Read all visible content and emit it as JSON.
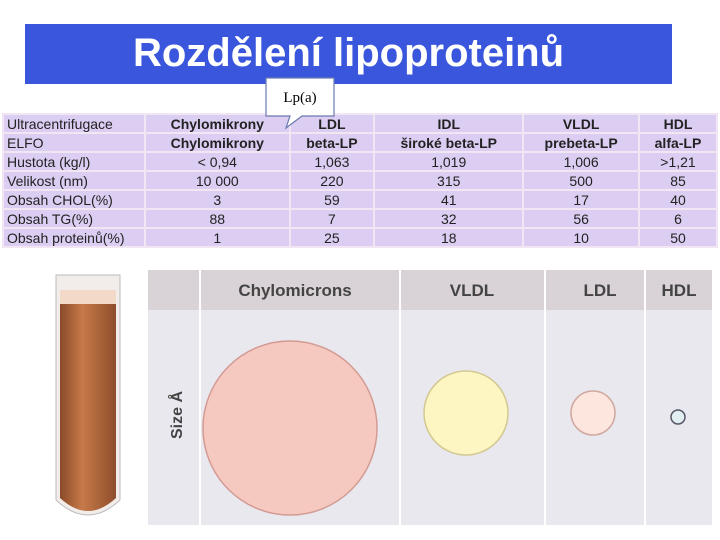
{
  "header": {
    "title": "Rozdělení lipoproteinů",
    "callout": "Lp(a)"
  },
  "table": {
    "rows": [
      [
        "Ultracentrifugace",
        "Chylomikrony",
        "LDL",
        "IDL",
        "VLDL",
        "HDL"
      ],
      [
        "ELFO",
        "Chylomikrony",
        "beta-LP",
        "široké beta-LP",
        "prebeta-LP",
        "alfa-LP"
      ],
      [
        "Hustota (kg/l)",
        "< 0,94",
        "1,063",
        "1,019",
        "1,006",
        ">1,21"
      ],
      [
        "Velikost (nm)",
        "10 000",
        "220",
        "315",
        "500",
        "85"
      ],
      [
        "Obsah CHOL(%)",
        "3",
        "59",
        "41",
        "17",
        "40"
      ],
      [
        "Obsah TG(%)",
        "88",
        "7",
        "32",
        "56",
        "6"
      ],
      [
        "Obsah proteinů(%)",
        "1",
        "25",
        "18",
        "10",
        "50"
      ]
    ]
  },
  "diagram": {
    "axis_label": "Size Å",
    "columns": [
      "Chylomicrons",
      "VLDL",
      "LDL",
      "HDL"
    ]
  }
}
